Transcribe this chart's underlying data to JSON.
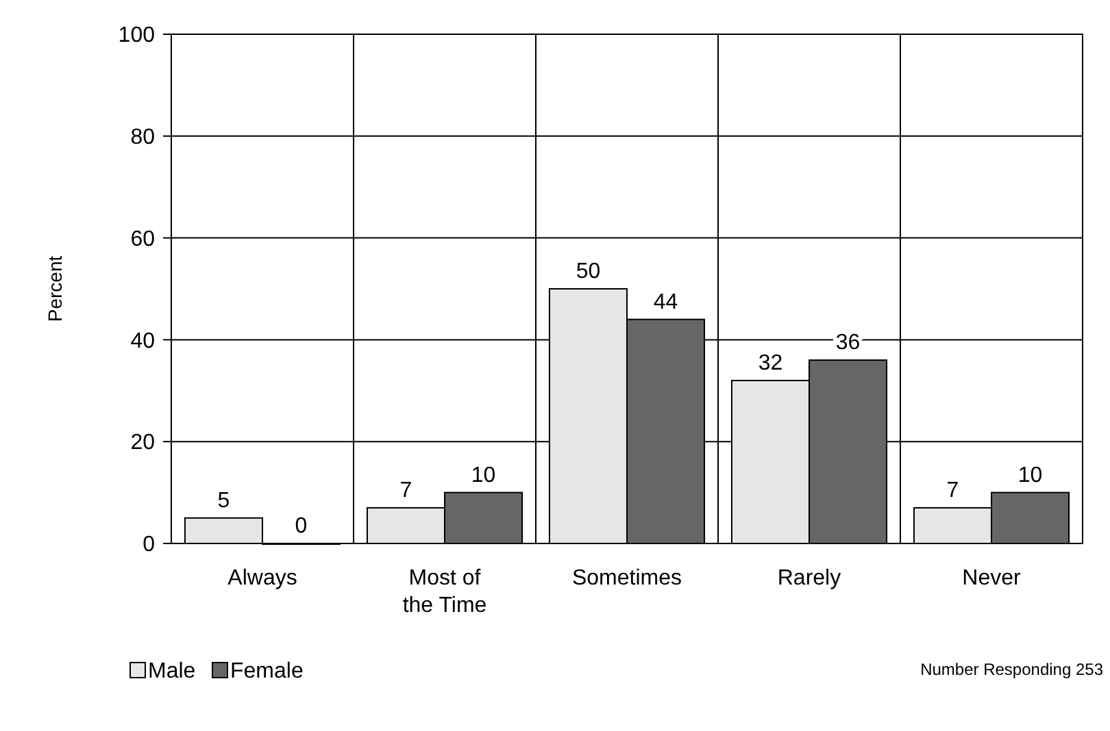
{
  "chart_data": {
    "type": "bar",
    "ylabel": "Percent",
    "categories": [
      "Always",
      "Most of\nthe Time",
      "Sometimes",
      "Rarely",
      "Never"
    ],
    "series": [
      {
        "name": "Male",
        "color": "#e6e6e6",
        "values": [
          5,
          7,
          50,
          32,
          7
        ]
      },
      {
        "name": "Female",
        "color": "#666666",
        "values": [
          0,
          10,
          44,
          36,
          10
        ]
      }
    ],
    "ylim": [
      0,
      100
    ],
    "yticks": [
      0,
      20,
      40,
      60,
      80,
      100
    ],
    "grid": true,
    "data_labels": true,
    "legend": "bottom left",
    "annotations": [
      "Number Responding 253"
    ]
  }
}
